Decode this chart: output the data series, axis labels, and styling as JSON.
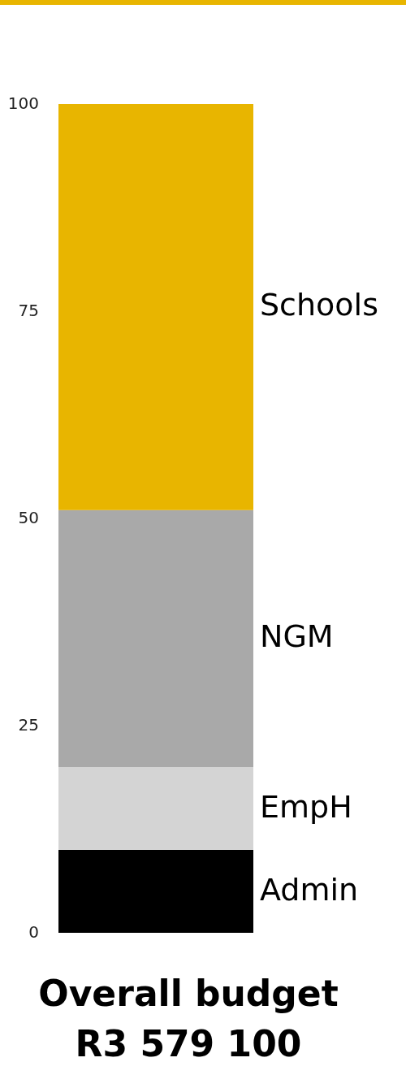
{
  "chart_data": {
    "type": "bar",
    "title": "Overall budget",
    "subtitle": "R3 579 100",
    "categories": [
      null
    ],
    "stacked": true,
    "ylim": [
      0,
      100
    ],
    "yticks": [
      0,
      25,
      50,
      75,
      100
    ],
    "grid": false,
    "legend": false,
    "series": [
      {
        "name": "Admin",
        "color": "#000000",
        "values": [
          10
        ]
      },
      {
        "name": "EmpH",
        "color": "#d4d4d4",
        "values": [
          10
        ]
      },
      {
        "name": "NGM",
        "color": "#a9a9a9",
        "values": [
          31
        ]
      },
      {
        "name": "Schools",
        "color": "#e8b500",
        "values": [
          49
        ]
      }
    ]
  }
}
